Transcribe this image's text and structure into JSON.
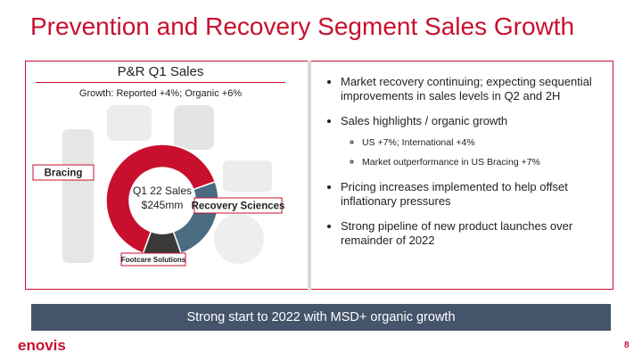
{
  "header": {
    "title": "Prevention and Recovery Segment Sales Growth"
  },
  "chart_data": {
    "type": "pie",
    "title": "P&R Q1 Sales",
    "subtitle": "Growth: Reported +4%; Organic +6%",
    "center_title": "Q1 22 Sales",
    "center_value": "$245mm",
    "categories": [
      "Bracing",
      "Recovery Sciences",
      "Footcare Solutions"
    ],
    "values": [
      64,
      25,
      11
    ],
    "colors": [
      "#c8102e",
      "#4a6b82",
      "#3a3a3a"
    ]
  },
  "bullets": [
    {
      "text": "Market recovery continuing; expecting sequential improvements in sales levels in Q2 and 2H"
    },
    {
      "text": "Sales highlights / organic growth",
      "sub": [
        "US +7%; International +4%",
        "Market outperformance in US Bracing +7%"
      ]
    },
    {
      "text": "Pricing increases implemented to help offset inflationary pressures"
    },
    {
      "text": "Strong pipeline of new product launches over remainder of 2022"
    }
  ],
  "banner": "Strong start to 2022 with MSD+ organic growth",
  "footer": {
    "logo": "enovis",
    "page": "8"
  }
}
